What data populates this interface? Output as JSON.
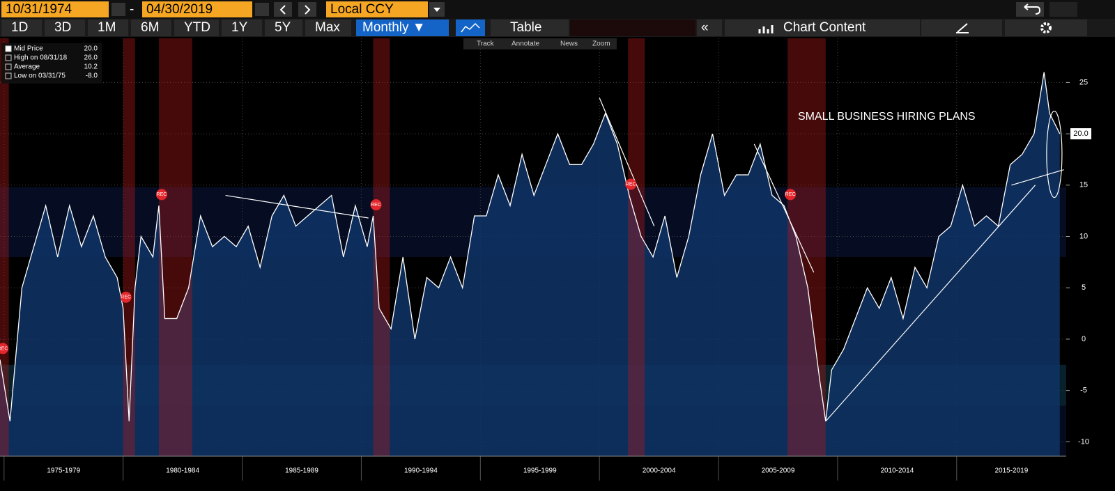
{
  "toolbar": {
    "start_date": "10/31/1974",
    "dash": "-",
    "end_date": "04/30/2019",
    "currency": "Local CCY",
    "ranges": [
      "1D",
      "3D",
      "1M",
      "6M",
      "YTD",
      "1Y",
      "5Y",
      "Max"
    ],
    "frequency": "Monthly ▼",
    "table": "Table",
    "chart_content": "Chart Content"
  },
  "chart_tools": [
    "Track",
    "Annotate",
    "News",
    "Zoom"
  ],
  "chart_data": {
    "type": "line",
    "annotation": "SMALL BUSINESS HIRING PLANS",
    "legend": [
      {
        "label": "Mid Price",
        "value": "20.0"
      },
      {
        "label": "High on 08/31/18",
        "value": "26.0"
      },
      {
        "label": "Average",
        "value": "10.2"
      },
      {
        "label": "Low on 03/31/75",
        "value": "-8.0"
      }
    ],
    "last_price": {
      "value": 20,
      "label": "20.0"
    },
    "x": [
      1974.83,
      1975.25,
      1975.75,
      1976.25,
      1976.75,
      1977.25,
      1977.75,
      1978.25,
      1978.75,
      1979.25,
      1979.75,
      1980.0,
      1980.25,
      1980.5,
      1980.75,
      1981.25,
      1981.5,
      1981.75,
      1982.25,
      1982.75,
      1983.25,
      1983.75,
      1984.25,
      1984.75,
      1985.25,
      1985.75,
      1986.25,
      1986.75,
      1987.25,
      1987.75,
      1988.25,
      1988.75,
      1989.25,
      1989.75,
      1990.25,
      1990.5,
      1990.75,
      1991.25,
      1991.75,
      1992.25,
      1992.75,
      1993.25,
      1993.75,
      1994.25,
      1994.75,
      1995.25,
      1995.75,
      1996.25,
      1996.75,
      1997.25,
      1997.75,
      1998.25,
      1998.75,
      1999.25,
      1999.75,
      2000.25,
      2000.75,
      2001.25,
      2001.75,
      2002.25,
      2002.75,
      2003.25,
      2003.75,
      2004.25,
      2004.75,
      2005.25,
      2005.75,
      2006.25,
      2006.75,
      2007.25,
      2007.75,
      2008.25,
      2008.75,
      2009.25,
      2009.5,
      2009.75,
      2010.25,
      2010.75,
      2011.25,
      2011.75,
      2012.25,
      2012.75,
      2013.25,
      2013.75,
      2014.25,
      2014.75,
      2015.25,
      2015.75,
      2016.25,
      2016.75,
      2017.25,
      2017.75,
      2018.25,
      2018.67,
      2018.9,
      2019.33
    ],
    "series": [
      {
        "name": "Mid Price",
        "color": "#ffffff",
        "values": [
          -2,
          -8,
          5,
          9,
          13,
          8,
          13,
          9,
          12,
          8,
          6,
          3,
          -8,
          5,
          10,
          8,
          13,
          2,
          2,
          5,
          12,
          9,
          10,
          9,
          11,
          7,
          12,
          14,
          11,
          12,
          13,
          14,
          8,
          13,
          9,
          12,
          3,
          1,
          8,
          0,
          6,
          5,
          8,
          5,
          12,
          12,
          16,
          13,
          18,
          14,
          17,
          20,
          17,
          17,
          19,
          22,
          19,
          14,
          10,
          8,
          12,
          6,
          10,
          16,
          20,
          14,
          16,
          16,
          19,
          14,
          13,
          10,
          5,
          -4,
          -8,
          -3,
          -1,
          2,
          5,
          3,
          6,
          2,
          7,
          5,
          10,
          11,
          15,
          11,
          12,
          11,
          17,
          18,
          20,
          26,
          22,
          20
        ]
      }
    ],
    "recessions": [
      {
        "label": "REC",
        "start": 1974.83,
        "end": 1975.2
      },
      {
        "label": "REC",
        "start": 1980.0,
        "end": 1980.5
      },
      {
        "label": "REC",
        "start": 1981.5,
        "end": 1982.9
      },
      {
        "label": "REC",
        "start": 1990.5,
        "end": 1991.2
      },
      {
        "label": "REC",
        "start": 2001.2,
        "end": 2001.9
      },
      {
        "label": "REC",
        "start": 2007.9,
        "end": 2009.5
      }
    ],
    "trendlines": [
      [
        [
          1984.3,
          14
        ],
        [
          1990.3,
          11.8
        ]
      ],
      [
        [
          2000.0,
          23.5
        ],
        [
          2002.3,
          11
        ]
      ],
      [
        [
          2006.5,
          19
        ],
        [
          2009.0,
          6.5
        ]
      ],
      [
        [
          2009.5,
          -8
        ],
        [
          2018.3,
          15
        ]
      ],
      [
        [
          2017.3,
          15
        ],
        [
          2019.5,
          16.5
        ]
      ]
    ],
    "periods": [
      {
        "label": "1975-1979",
        "start": 1975,
        "end": 1980
      },
      {
        "label": "1980-1984",
        "start": 1980,
        "end": 1985
      },
      {
        "label": "1985-1989",
        "start": 1985,
        "end": 1990
      },
      {
        "label": "1990-1994",
        "start": 1990,
        "end": 1995
      },
      {
        "label": "1995-1999",
        "start": 1995,
        "end": 2000
      },
      {
        "label": "2000-2004",
        "start": 2000,
        "end": 2005
      },
      {
        "label": "2005-2009",
        "start": 2005,
        "end": 2010
      },
      {
        "label": "2010-2014",
        "start": 2010,
        "end": 2015
      },
      {
        "label": "2015-2019",
        "start": 2015,
        "end": 2020
      }
    ],
    "xlim": [
      1974.83,
      2019.6
    ],
    "ylim": [
      -11.4,
      29.3
    ],
    "yticks": [
      -10,
      -5,
      0,
      5,
      10,
      15,
      20,
      25
    ],
    "grid": true
  }
}
